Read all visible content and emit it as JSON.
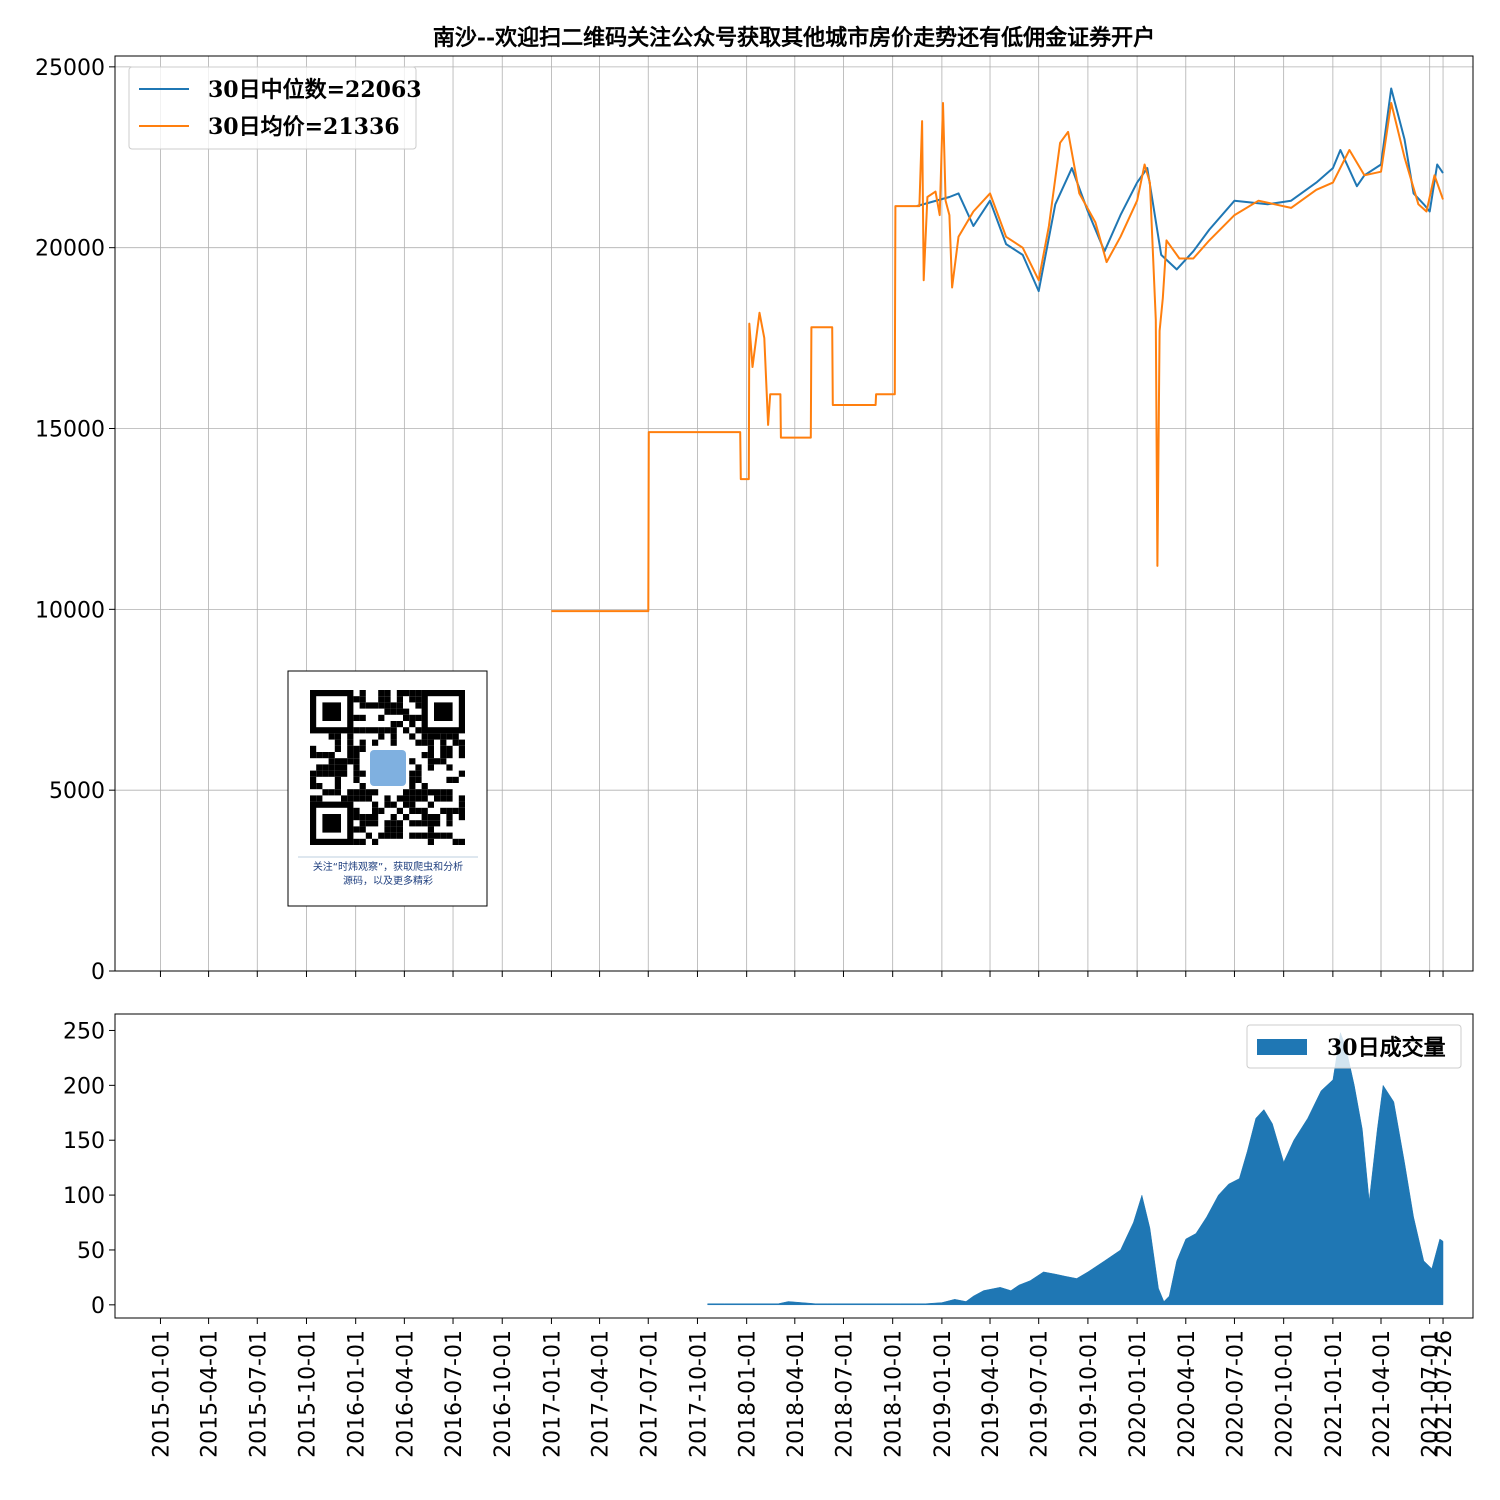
{
  "chart_data": [
    {
      "type": "line",
      "title": "南沙--欢迎扫二维码关注公众号获取其他城市房价走势还有低佣金证券开户",
      "xlim": [
        "2014-10-08",
        "2021-09-20"
      ],
      "ylim": [
        0,
        25300
      ],
      "yticks": [
        0,
        5000,
        10000,
        15000,
        20000,
        25000
      ],
      "ytick_labels": [
        "0",
        "5000",
        "10000",
        "15000",
        "20000",
        "25000"
      ],
      "grid": true,
      "legend_position": "top-left",
      "series": [
        {
          "name": "30日中位数=22063",
          "color": "#1f77b4",
          "points": [
            [
              "2018-11-15",
              21150
            ],
            [
              "2019-01-15",
              21400
            ],
            [
              "2019-02-01",
              21500
            ],
            [
              "2019-03-01",
              20600
            ],
            [
              "2019-04-01",
              21300
            ],
            [
              "2019-05-01",
              20100
            ],
            [
              "2019-06-01",
              19800
            ],
            [
              "2019-07-01",
              18800
            ],
            [
              "2019-08-01",
              21200
            ],
            [
              "2019-09-01",
              22200
            ],
            [
              "2019-10-01",
              21000
            ],
            [
              "2019-11-01",
              19900
            ],
            [
              "2019-12-01",
              20900
            ],
            [
              "2020-01-01",
              21800
            ],
            [
              "2020-01-20",
              22200
            ],
            [
              "2020-02-15",
              19800
            ],
            [
              "2020-03-15",
              19400
            ],
            [
              "2020-04-15",
              19900
            ],
            [
              "2020-05-15",
              20500
            ],
            [
              "2020-07-01",
              21300
            ],
            [
              "2020-09-01",
              21200
            ],
            [
              "2020-10-15",
              21300
            ],
            [
              "2020-12-01",
              21800
            ],
            [
              "2021-01-01",
              22200
            ],
            [
              "2021-01-15",
              22700
            ],
            [
              "2021-02-15",
              21700
            ],
            [
              "2021-03-01",
              22000
            ],
            [
              "2021-04-01",
              22300
            ],
            [
              "2021-04-20",
              24400
            ],
            [
              "2021-05-15",
              23000
            ],
            [
              "2021-06-01",
              21500
            ],
            [
              "2021-06-20",
              21200
            ],
            [
              "2021-07-01",
              21000
            ],
            [
              "2021-07-15",
              22300
            ],
            [
              "2021-07-26",
              22063
            ]
          ]
        },
        {
          "name": "30日均价=21336",
          "color": "#ff7f0e",
          "points": [
            [
              "2017-01-01",
              9950
            ],
            [
              "2017-07-01",
              9950
            ],
            [
              "2017-07-02",
              14900
            ],
            [
              "2017-12-20",
              14900
            ],
            [
              "2017-12-21",
              13600
            ],
            [
              "2018-01-05",
              13600
            ],
            [
              "2018-01-06",
              17900
            ],
            [
              "2018-01-12",
              16700
            ],
            [
              "2018-01-25",
              18200
            ],
            [
              "2018-02-03",
              17500
            ],
            [
              "2018-02-10",
              15100
            ],
            [
              "2018-02-14",
              15950
            ],
            [
              "2018-03-05",
              15950
            ],
            [
              "2018-03-06",
              14750
            ],
            [
              "2018-05-01",
              14750
            ],
            [
              "2018-05-02",
              17800
            ],
            [
              "2018-06-10",
              17800
            ],
            [
              "2018-06-11",
              15650
            ],
            [
              "2018-08-30",
              15650
            ],
            [
              "2018-08-31",
              15950
            ],
            [
              "2018-10-05",
              15950
            ],
            [
              "2018-10-06",
              21150
            ],
            [
              "2018-11-20",
              21150
            ],
            [
              "2018-11-25",
              23500
            ],
            [
              "2018-11-28",
              19100
            ],
            [
              "2018-12-05",
              21400
            ],
            [
              "2018-12-20",
              21550
            ],
            [
              "2018-12-28",
              20900
            ],
            [
              "2019-01-03",
              24000
            ],
            [
              "2019-01-08",
              21300
            ],
            [
              "2019-01-15",
              20900
            ],
            [
              "2019-01-20",
              18900
            ],
            [
              "2019-02-01",
              20300
            ],
            [
              "2019-03-01",
              21000
            ],
            [
              "2019-04-01",
              21500
            ],
            [
              "2019-05-01",
              20300
            ],
            [
              "2019-06-01",
              20000
            ],
            [
              "2019-07-01",
              19100
            ],
            [
              "2019-07-20",
              20600
            ],
            [
              "2019-08-10",
              22900
            ],
            [
              "2019-08-25",
              23200
            ],
            [
              "2019-09-15",
              21500
            ],
            [
              "2019-10-15",
              20700
            ],
            [
              "2019-11-05",
              19600
            ],
            [
              "2019-12-01",
              20300
            ],
            [
              "2020-01-01",
              21300
            ],
            [
              "2020-01-15",
              22300
            ],
            [
              "2020-01-25",
              21800
            ],
            [
              "2020-02-05",
              18000
            ],
            [
              "2020-02-08",
              11200
            ],
            [
              "2020-02-12",
              17700
            ],
            [
              "2020-02-18",
              18600
            ],
            [
              "2020-02-25",
              20200
            ],
            [
              "2020-03-20",
              19700
            ],
            [
              "2020-04-15",
              19700
            ],
            [
              "2020-05-15",
              20200
            ],
            [
              "2020-07-01",
              20900
            ],
            [
              "2020-08-15",
              21300
            ],
            [
              "2020-10-15",
              21100
            ],
            [
              "2020-12-01",
              21600
            ],
            [
              "2021-01-01",
              21800
            ],
            [
              "2021-02-01",
              22700
            ],
            [
              "2021-03-01",
              22000
            ],
            [
              "2021-04-01",
              22100
            ],
            [
              "2021-04-20",
              24000
            ],
            [
              "2021-05-15",
              22500
            ],
            [
              "2021-06-10",
              21200
            ],
            [
              "2021-06-25",
              21000
            ],
            [
              "2021-07-10",
              22000
            ],
            [
              "2021-07-26",
              21336
            ]
          ]
        }
      ]
    },
    {
      "type": "area",
      "xlim": [
        "2014-10-08",
        "2021-09-20"
      ],
      "ylim": [
        -12,
        265
      ],
      "yticks": [
        0,
        50,
        100,
        150,
        200,
        250
      ],
      "ytick_labels": [
        "0",
        "50",
        "100",
        "150",
        "200",
        "250"
      ],
      "xtick_labels": [
        "2015-01-01",
        "2015-04-01",
        "2015-07-01",
        "2015-10-01",
        "2016-01-01",
        "2016-04-01",
        "2016-07-01",
        "2016-10-01",
        "2017-01-01",
        "2017-04-01",
        "2017-07-01",
        "2017-10-01",
        "2018-01-01",
        "2018-04-01",
        "2018-07-01",
        "2018-10-01",
        "2019-01-01",
        "2019-04-01",
        "2019-07-01",
        "2019-10-01",
        "2020-01-01",
        "2020-04-01",
        "2020-07-01",
        "2020-10-01",
        "2021-01-01",
        "2021-04-01",
        "2021-07-01",
        "2021-07-26"
      ],
      "grid": false,
      "legend_position": "top-right",
      "series": [
        {
          "name": "30日成交量",
          "color": "#1f77b4",
          "points": [
            [
              "2017-10-20",
              1
            ],
            [
              "2017-11-20",
              1
            ],
            [
              "2018-03-01",
              1
            ],
            [
              "2018-03-20",
              3
            ],
            [
              "2018-05-10",
              1
            ],
            [
              "2018-06-01",
              1
            ],
            [
              "2018-06-10",
              1
            ],
            [
              "2018-09-01",
              1
            ],
            [
              "2018-10-15",
              1
            ],
            [
              "2018-11-15",
              1
            ],
            [
              "2018-12-01",
              1
            ],
            [
              "2019-01-01",
              2
            ],
            [
              "2019-01-25",
              5
            ],
            [
              "2019-02-15",
              3
            ],
            [
              "2019-03-01",
              8
            ],
            [
              "2019-03-20",
              13
            ],
            [
              "2019-04-20",
              16
            ],
            [
              "2019-05-10",
              13
            ],
            [
              "2019-05-25",
              18
            ],
            [
              "2019-06-15",
              22
            ],
            [
              "2019-07-10",
              30
            ],
            [
              "2019-08-01",
              28
            ],
            [
              "2019-08-20",
              26
            ],
            [
              "2019-09-10",
              24
            ],
            [
              "2019-10-01",
              30
            ],
            [
              "2019-11-01",
              40
            ],
            [
              "2019-12-01",
              50
            ],
            [
              "2019-12-25",
              75
            ],
            [
              "2020-01-10",
              100
            ],
            [
              "2020-01-25",
              70
            ],
            [
              "2020-02-10",
              15
            ],
            [
              "2020-02-20",
              3
            ],
            [
              "2020-03-01",
              8
            ],
            [
              "2020-03-15",
              40
            ],
            [
              "2020-04-01",
              60
            ],
            [
              "2020-04-20",
              65
            ],
            [
              "2020-05-10",
              80
            ],
            [
              "2020-06-01",
              100
            ],
            [
              "2020-06-20",
              110
            ],
            [
              "2020-07-10",
              115
            ],
            [
              "2020-07-25",
              140
            ],
            [
              "2020-08-10",
              170
            ],
            [
              "2020-08-25",
              178
            ],
            [
              "2020-09-10",
              165
            ],
            [
              "2020-10-01",
              130
            ],
            [
              "2020-10-20",
              150
            ],
            [
              "2020-11-15",
              170
            ],
            [
              "2020-12-10",
              195
            ],
            [
              "2021-01-01",
              205
            ],
            [
              "2021-01-15",
              248
            ],
            [
              "2021-01-25",
              235
            ],
            [
              "2021-02-10",
              200
            ],
            [
              "2021-02-25",
              160
            ],
            [
              "2021-03-10",
              95
            ],
            [
              "2021-03-25",
              160
            ],
            [
              "2021-04-05",
              200
            ],
            [
              "2021-04-25",
              185
            ],
            [
              "2021-05-15",
              130
            ],
            [
              "2021-06-01",
              80
            ],
            [
              "2021-06-20",
              40
            ],
            [
              "2021-07-05",
              33
            ],
            [
              "2021-07-20",
              60
            ],
            [
              "2021-07-26",
              58
            ]
          ]
        }
      ]
    }
  ],
  "qr_block": {
    "caption_line1": "关注“时炜观察”，获取爬虫和分析",
    "caption_line2": "源码，以及更多精彩"
  }
}
